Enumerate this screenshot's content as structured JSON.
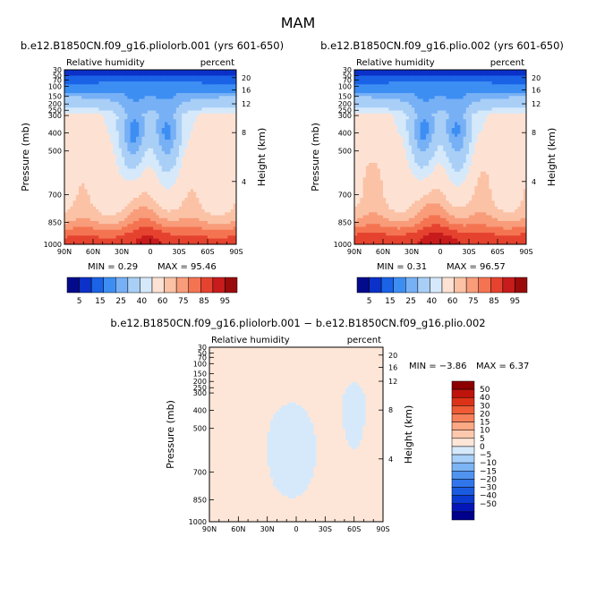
{
  "season": "MAM",
  "left_title": "b.e12.B1850CN.f09_g16.pliolorb.001 (yrs 601-650)",
  "right_title": "b.e12.B1850CN.f09_g16.plio.002 (yrs 601-650)",
  "diff_title": "b.e12.B1850CN.f09_g16.pliolorb.001 − b.e12.B1850CN.f09_g16.plio.002",
  "variable": "Relative humidity",
  "units": "percent",
  "ylabel_left": "Pressure (mb)",
  "ylabel_right": "Height (km)",
  "pressure_ticks": [
    "30",
    "50",
    "70",
    "100",
    "150",
    "200",
    "250",
    "300",
    "400",
    "500",
    "700",
    "850",
    "1000"
  ],
  "height_ticks": [
    "20",
    "16",
    "12",
    "8",
    "4"
  ],
  "lat_ticks": [
    "90N",
    "60N",
    "30N",
    "0",
    "30S",
    "60S",
    "90S"
  ],
  "colors": {
    "abs": [
      "#040a8c",
      "#0b31c9",
      "#1a62e6",
      "#3d8ef3",
      "#77b0f5",
      "#a9cff7",
      "#d5e9fb",
      "#fde2d4",
      "#fbc2a6",
      "#f89c7a",
      "#f47452",
      "#e5432f",
      "#c71b1c",
      "#9a0b0c"
    ],
    "diff": [
      "#00008c",
      "#0516b8",
      "#0a3ad0",
      "#1a5be0",
      "#3076ea",
      "#5194f0",
      "#7cb4f4",
      "#a9d0f8",
      "#d6e9fb",
      "#fde6d8",
      "#fcc9ae",
      "#fba884",
      "#f6805a",
      "#ee5b34",
      "#dc3218",
      "#be140c",
      "#8c0000"
    ]
  },
  "abs_colorbar_labels": [
    "5",
    "15",
    "25",
    "40",
    "60",
    "75",
    "85",
    "95"
  ],
  "diff_colorbar_labels": [
    "50",
    "40",
    "30",
    "20",
    "15",
    "10",
    "5",
    "0",
    "−5",
    "−10",
    "−15",
    "−20",
    "−30",
    "−40",
    "−50"
  ],
  "chart_data": [
    {
      "type": "heatmap",
      "title": "b.e12.B1850CN.f09_g16.pliolorb.001 (yrs 601-650)",
      "xlabel": "",
      "ylabel": "Pressure (mb)",
      "min": 0.29,
      "max": 95.46,
      "min_text": "MIN =     0.29",
      "max_text": "MAX =   95.46"
    },
    {
      "type": "heatmap",
      "title": "b.e12.B1850CN.f09_g16.plio.002 (yrs 601-650)",
      "xlabel": "",
      "ylabel": "Pressure (mb)",
      "min": 0.31,
      "max": 96.57,
      "min_text": "MIN =     0.31",
      "max_text": "MAX =   96.57"
    },
    {
      "type": "heatmap",
      "title": "b.e12.B1850CN.f09_g16.pliolorb.001 − b.e12.B1850CN.f09_g16.plio.002",
      "xlabel": "",
      "ylabel": "Pressure (mb)",
      "min": -3.86,
      "max": 6.37,
      "min_text": "MIN =   −3.86",
      "max_text": "MAX =     6.37"
    }
  ]
}
